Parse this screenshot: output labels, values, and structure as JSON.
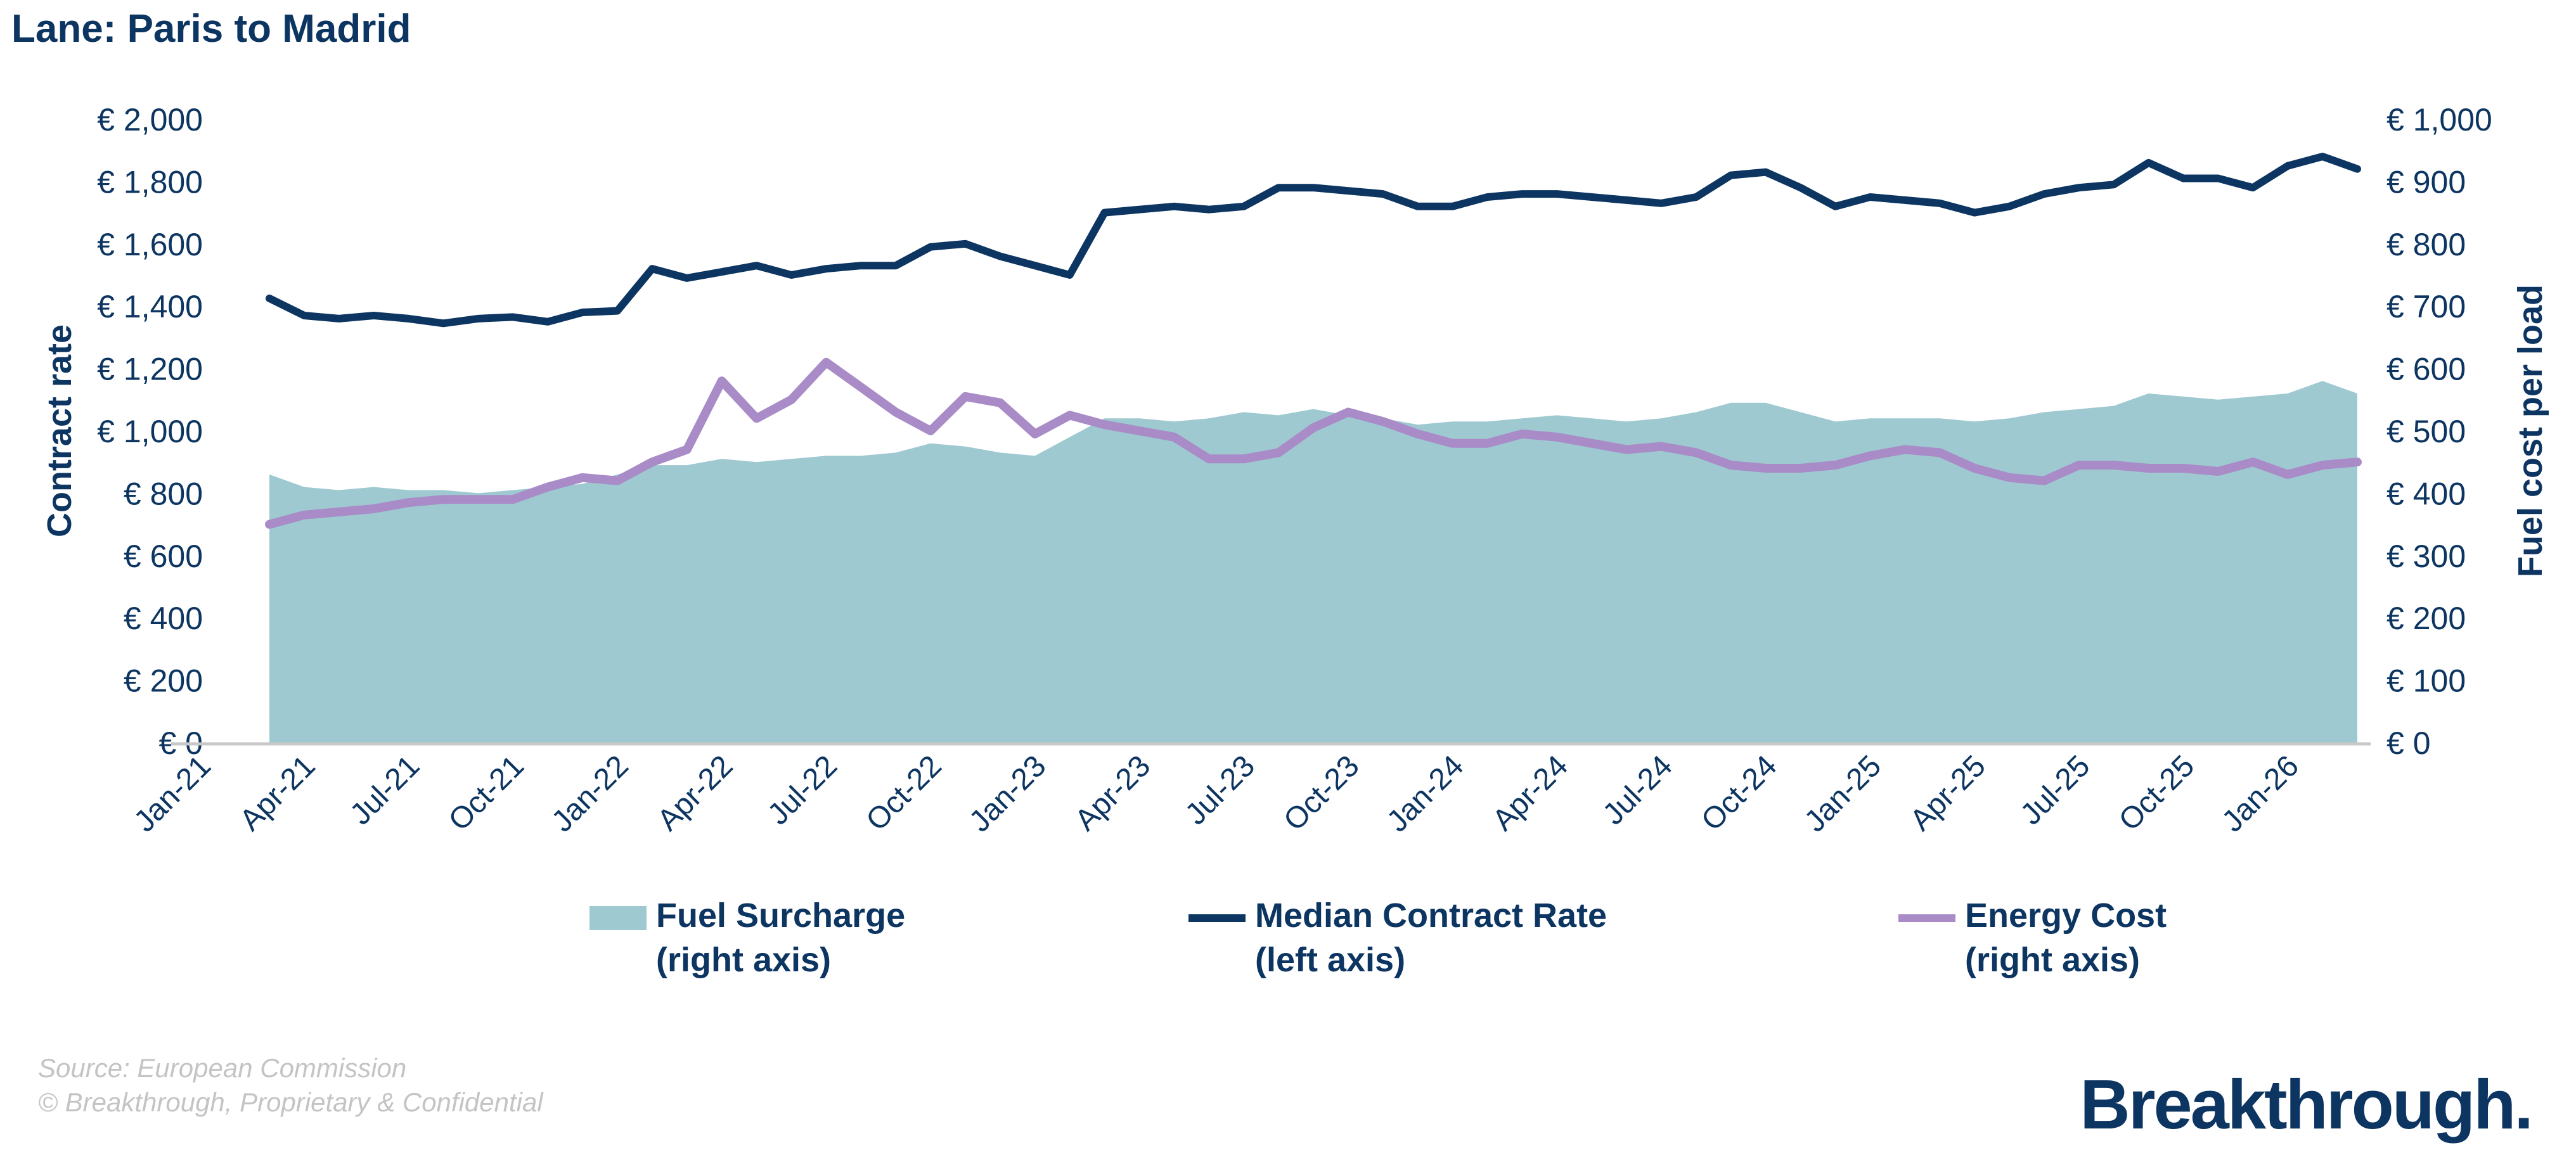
{
  "title": "Lane: Paris to Madrid",
  "chart_data": {
    "type": "line",
    "title": "Lane: Paris to Madrid",
    "x_label": "",
    "y_label_left": "Contract rate",
    "y_label_right": "Fuel cost per load",
    "ylim_left": [
      0,
      2000
    ],
    "ylim_right": [
      0,
      1000
    ],
    "y_ticks_left": [
      "€ 0",
      "€ 200",
      "€ 400",
      "€ 600",
      "€ 800",
      "€ 1,000",
      "€ 1,200",
      "€ 1,400",
      "€ 1,600",
      "€ 1,800",
      "€ 2,000"
    ],
    "y_ticks_right": [
      "€ 0",
      "€ 100",
      "€ 200",
      "€ 300",
      "€ 400",
      "€ 500",
      "€ 600",
      "€ 700",
      "€ 800",
      "€ 900",
      "€ 1,000"
    ],
    "x_ticks": [
      "Jan-21",
      "Apr-21",
      "Jul-21",
      "Oct-21",
      "Jan-22",
      "Apr-22",
      "Jul-22",
      "Oct-22",
      "Jan-23",
      "Apr-23",
      "Jul-23",
      "Oct-23",
      "Jan-24",
      "Apr-24",
      "Jul-24",
      "Oct-24",
      "Jan-25",
      "Apr-25",
      "Jul-25",
      "Oct-25",
      "Jan-26"
    ],
    "grid": false,
    "legend_placement": "bottom",
    "x": [
      "2021-03",
      "2021-04",
      "2021-05",
      "2021-06",
      "2021-07",
      "2021-08",
      "2021-09",
      "2021-10",
      "2021-11",
      "2021-12",
      "2022-01",
      "2022-02",
      "2022-03",
      "2022-04",
      "2022-05",
      "2022-06",
      "2022-07",
      "2022-08",
      "2022-09",
      "2022-10",
      "2022-11",
      "2022-12",
      "2023-01",
      "2023-02",
      "2023-03",
      "2023-04",
      "2023-05",
      "2023-06",
      "2023-07",
      "2023-08",
      "2023-09",
      "2023-10",
      "2023-11",
      "2023-12",
      "2024-01",
      "2024-02",
      "2024-03",
      "2024-04",
      "2024-05",
      "2024-06",
      "2024-07",
      "2024-08",
      "2024-09",
      "2024-10",
      "2024-11",
      "2024-12",
      "2025-01",
      "2025-02",
      "2025-03",
      "2025-04",
      "2025-05",
      "2025-06",
      "2025-07",
      "2025-08",
      "2025-09",
      "2025-10",
      "2025-11",
      "2025-12",
      "2026-01",
      "2026-02",
      "2026-03"
    ],
    "series": [
      {
        "name": "Fuel Surcharge\n(right axis)",
        "type": "area",
        "axis": "right",
        "color": "#9ec9d1",
        "values": [
          430,
          410,
          405,
          410,
          405,
          405,
          400,
          405,
          410,
          415,
          430,
          445,
          445,
          455,
          450,
          455,
          460,
          460,
          465,
          480,
          475,
          465,
          460,
          490,
          520,
          520,
          515,
          520,
          530,
          525,
          535,
          525,
          520,
          510,
          515,
          515,
          520,
          525,
          520,
          515,
          520,
          530,
          545,
          545,
          530,
          515,
          520,
          520,
          520,
          515,
          520,
          530,
          535,
          540,
          560,
          555,
          550,
          555,
          560,
          580,
          560
        ]
      },
      {
        "name": "Median Contract Rate\n(left axis)",
        "type": "line",
        "axis": "left",
        "color": "#0d3561",
        "values": [
          1425,
          1370,
          1360,
          1370,
          1360,
          1345,
          1360,
          1365,
          1350,
          1380,
          1385,
          1520,
          1490,
          1510,
          1530,
          1500,
          1520,
          1530,
          1530,
          1590,
          1600,
          1560,
          1530,
          1500,
          1700,
          1710,
          1720,
          1710,
          1720,
          1780,
          1780,
          1770,
          1760,
          1720,
          1720,
          1750,
          1760,
          1760,
          1750,
          1740,
          1730,
          1750,
          1820,
          1830,
          1780,
          1720,
          1750,
          1740,
          1730,
          1700,
          1720,
          1760,
          1780,
          1790,
          1860,
          1810,
          1810,
          1780,
          1850,
          1880,
          1840
        ]
      },
      {
        "name": "Energy Cost\n(right axis)",
        "type": "line",
        "axis": "right",
        "color": "#a98bc7",
        "values": [
          350,
          365,
          370,
          375,
          385,
          390,
          390,
          390,
          410,
          425,
          420,
          450,
          470,
          580,
          520,
          550,
          610,
          570,
          530,
          500,
          555,
          545,
          495,
          525,
          510,
          500,
          490,
          455,
          455,
          465,
          505,
          530,
          515,
          495,
          480,
          480,
          495,
          490,
          480,
          470,
          475,
          465,
          445,
          440,
          440,
          445,
          460,
          470,
          465,
          440,
          425,
          420,
          445,
          445,
          440,
          440,
          435,
          450,
          430,
          445,
          450
        ]
      }
    ]
  },
  "legend": [
    {
      "line1": "Fuel Surcharge",
      "line2": "(right axis)"
    },
    {
      "line1": "Median Contract Rate",
      "line2": "(left axis)"
    },
    {
      "line1": "Energy Cost",
      "line2": "(right axis)"
    }
  ],
  "footer": {
    "source": "Source: European Commission",
    "copyright": "© Breakthrough, Proprietary & Confidential"
  },
  "logo": "Breakthrough."
}
